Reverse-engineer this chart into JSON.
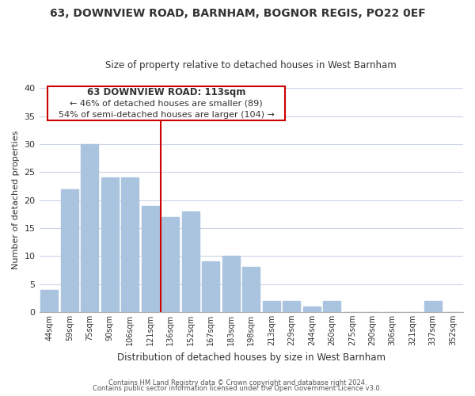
{
  "title1": "63, DOWNVIEW ROAD, BARNHAM, BOGNOR REGIS, PO22 0EF",
  "title2": "Size of property relative to detached houses in West Barnham",
  "xlabel": "Distribution of detached houses by size in West Barnham",
  "ylabel": "Number of detached properties",
  "bar_labels": [
    "44sqm",
    "59sqm",
    "75sqm",
    "90sqm",
    "106sqm",
    "121sqm",
    "136sqm",
    "152sqm",
    "167sqm",
    "183sqm",
    "198sqm",
    "213sqm",
    "229sqm",
    "244sqm",
    "260sqm",
    "275sqm",
    "290sqm",
    "306sqm",
    "321sqm",
    "337sqm",
    "352sqm"
  ],
  "bar_values": [
    4,
    22,
    30,
    24,
    24,
    19,
    17,
    18,
    9,
    10,
    8,
    2,
    2,
    1,
    2,
    0,
    0,
    0,
    0,
    2,
    0
  ],
  "bar_color": "#aac4e0",
  "vline_x": 5.5,
  "vline_color": "#cc0000",
  "annotation_title": "63 DOWNVIEW ROAD: 113sqm",
  "annotation_line1": "← 46% of detached houses are smaller (89)",
  "annotation_line2": "54% of semi-detached houses are larger (104) →",
  "annotation_box_color": "#ffffff",
  "annotation_box_edge": "#cc0000",
  "ylim": [
    0,
    40
  ],
  "yticks": [
    0,
    5,
    10,
    15,
    20,
    25,
    30,
    35,
    40
  ],
  "footer1": "Contains HM Land Registry data © Crown copyright and database right 2024.",
  "footer2": "Contains public sector information licensed under the Open Government Licence v3.0.",
  "background_color": "#ffffff",
  "grid_color": "#ccd6e8"
}
